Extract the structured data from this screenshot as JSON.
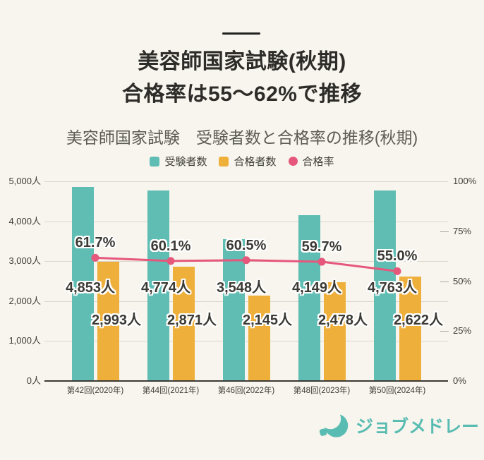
{
  "header": {
    "title_line1": "美容師国家試験(秋期)",
    "title_line2": "合格率は55〜62%で推移"
  },
  "chart_data": {
    "type": "bar",
    "title": "美容師国家試験　受験者数と合格率の推移(秋期)",
    "categories": [
      "第42回(2020年)",
      "第44回(2021年)",
      "第46回(2022年)",
      "第48回(2023年)",
      "第50回(2024年)"
    ],
    "series": [
      {
        "name": "受験者数",
        "type": "bar",
        "marker": "square",
        "color": "#5FBDB4",
        "values": [
          4853,
          4774,
          3548,
          4149,
          4763
        ],
        "labels": [
          "4,853人",
          "4,774人",
          "3,548人",
          "4,149人",
          "4,763人"
        ]
      },
      {
        "name": "合格者数",
        "type": "bar",
        "marker": "square",
        "color": "#EFAF3B",
        "values": [
          2993,
          2871,
          2145,
          2478,
          2622
        ],
        "labels": [
          "2,993人",
          "2,871人",
          "2,145人",
          "2,478人",
          "2,622人"
        ]
      },
      {
        "name": "合格率",
        "type": "line",
        "marker": "circle",
        "color": "#E5577B",
        "values": [
          61.7,
          60.1,
          60.5,
          59.7,
          55.0
        ],
        "labels": [
          "61.7%",
          "60.1%",
          "60.5%",
          "59.7%",
          "55.0%"
        ]
      }
    ],
    "left_axis": {
      "label_unit": "人",
      "min": 0,
      "max": 5000,
      "ticks": [
        "5,000人",
        "4,000人",
        "3,000人",
        "2,000人",
        "1,000人",
        "0人"
      ]
    },
    "right_axis": {
      "label_unit": "%",
      "min": 0,
      "max": 100,
      "ticks": [
        "100%",
        "75%",
        "50%",
        "25%",
        "0%"
      ]
    },
    "legend_position": "top",
    "grid": true
  },
  "colors": {
    "background": "#F8F5EE",
    "title_text": "#2D2C28",
    "subtitle_text": "#5D5B55",
    "grid_line": "#D9D6CD",
    "axis_line": "#3B3A35",
    "label_halo": "#FFFFFF",
    "logo_teal": "#59BCB2"
  },
  "footer": {
    "logo_text": "ジョブメドレー"
  }
}
